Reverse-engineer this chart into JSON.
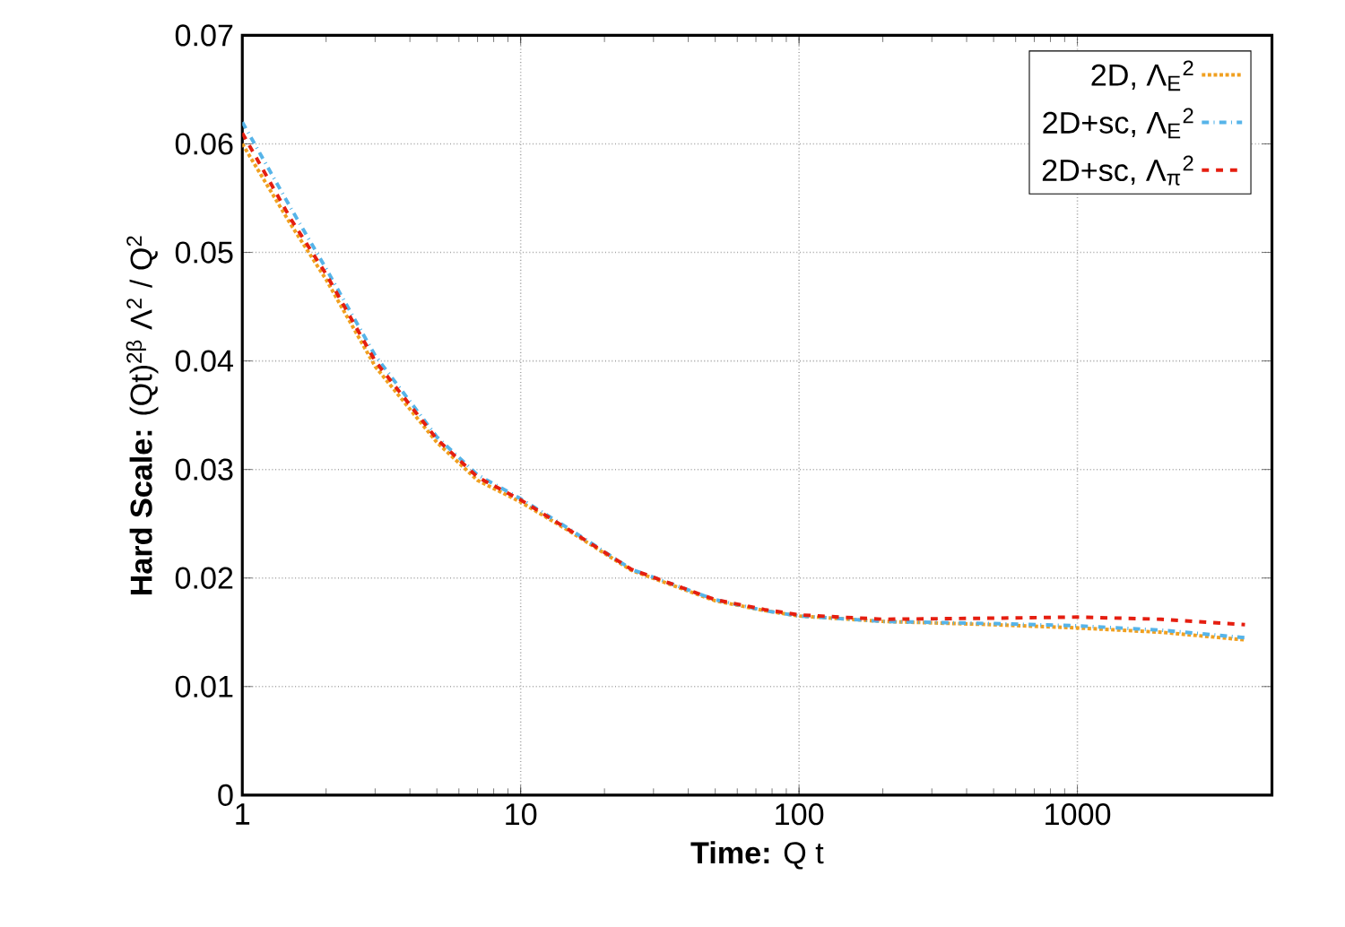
{
  "chart_data": {
    "type": "line",
    "xlabel": "**Time:**  Q t",
    "ylabel": "**Hard Scale:**  (Qt)$^{2β}$ Λ$^{2}$ / Q$^{2}$",
    "log": "x",
    "xlim": [
      1,
      5000
    ],
    "xticks": [
      1,
      10,
      100,
      1000
    ],
    "ylim": [
      0,
      0.07
    ],
    "yticks": [
      0,
      0.01,
      0.02,
      0.03,
      0.04,
      0.05,
      0.06,
      0.07
    ],
    "grid": true,
    "legend": "top right",
    "x": [
      1,
      1.5,
      2,
      3,
      5,
      7,
      10,
      15,
      25,
      50,
      75,
      100,
      200,
      500,
      1000,
      2000,
      4000
    ],
    "series": [
      {
        "name": "2D, Λ$_{E}$$^{2}$",
        "color": "#f0a020",
        "line_style": "dotted",
        "values": [
          0.06,
          0.0525,
          0.0475,
          0.0395,
          0.0325,
          0.029,
          0.027,
          0.0243,
          0.0207,
          0.0179,
          0.017,
          0.0165,
          0.016,
          0.0157,
          0.0154,
          0.015,
          0.0143
        ]
      },
      {
        "name": "2D+sc, Λ$_{E}$$^{2}$",
        "color": "#56b4e9",
        "line_style": "dashdot",
        "values": [
          0.062,
          0.054,
          0.0485,
          0.0405,
          0.033,
          0.0295,
          0.0273,
          0.0245,
          0.0208,
          0.018,
          0.017,
          0.0165,
          0.016,
          0.0158,
          0.0156,
          0.0152,
          0.0145
        ]
      },
      {
        "name": "2D+sc, Λ$_{π}$$^{2}$",
        "color": "#e51e10",
        "line_style": "dashed",
        "values": [
          0.061,
          0.053,
          0.048,
          0.04,
          0.0328,
          0.0293,
          0.0272,
          0.0244,
          0.0208,
          0.018,
          0.0171,
          0.0166,
          0.0162,
          0.0163,
          0.0164,
          0.0162,
          0.0157
        ]
      }
    ]
  }
}
